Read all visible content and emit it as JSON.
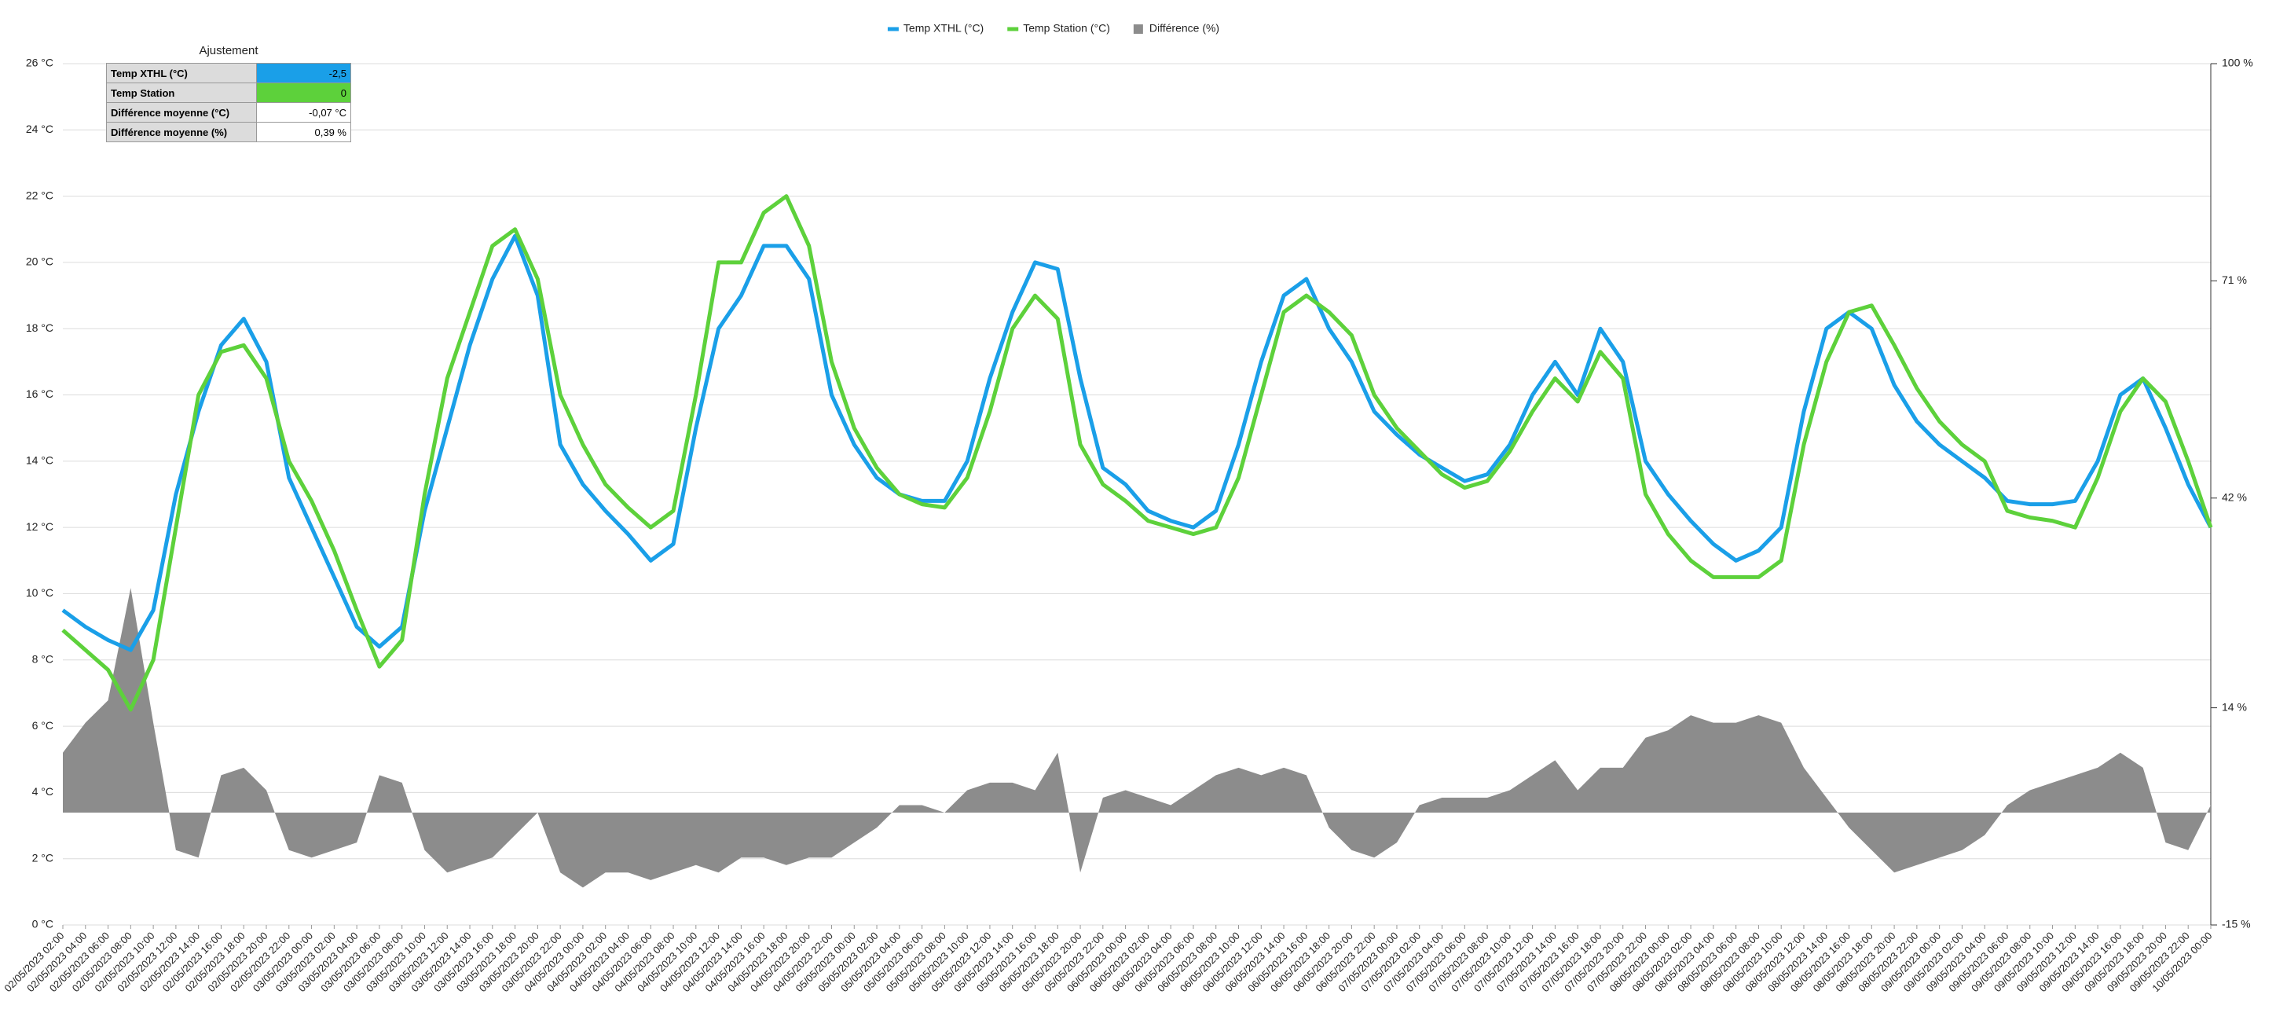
{
  "chart_data": {
    "type": "line",
    "legend": "top",
    "grid": true,
    "categories": [
      "02/05/2023 02:00",
      "02/05/2023 04:00",
      "02/05/2023 06:00",
      "02/05/2023 08:00",
      "02/05/2023 10:00",
      "02/05/2023 12:00",
      "02/05/2023 14:00",
      "02/05/2023 16:00",
      "02/05/2023 18:00",
      "02/05/2023 20:00",
      "02/05/2023 22:00",
      "03/05/2023 00:00",
      "03/05/2023 02:00",
      "03/05/2023 04:00",
      "03/05/2023 06:00",
      "03/05/2023 08:00",
      "03/05/2023 10:00",
      "03/05/2023 12:00",
      "03/05/2023 14:00",
      "03/05/2023 16:00",
      "03/05/2023 18:00",
      "03/05/2023 20:00",
      "03/05/2023 22:00",
      "04/05/2023 00:00",
      "04/05/2023 02:00",
      "04/05/2023 04:00",
      "04/05/2023 06:00",
      "04/05/2023 08:00",
      "04/05/2023 10:00",
      "04/05/2023 12:00",
      "04/05/2023 14:00",
      "04/05/2023 16:00",
      "04/05/2023 18:00",
      "04/05/2023 20:00",
      "04/05/2023 22:00",
      "05/05/2023 00:00",
      "05/05/2023 02:00",
      "05/05/2023 04:00",
      "05/05/2023 06:00",
      "05/05/2023 08:00",
      "05/05/2023 10:00",
      "05/05/2023 12:00",
      "05/05/2023 14:00",
      "05/05/2023 16:00",
      "05/05/2023 18:00",
      "05/05/2023 20:00",
      "05/05/2023 22:00",
      "06/05/2023 00:00",
      "06/05/2023 02:00",
      "06/05/2023 04:00",
      "06/05/2023 06:00",
      "06/05/2023 08:00",
      "06/05/2023 10:00",
      "06/05/2023 12:00",
      "06/05/2023 14:00",
      "06/05/2023 16:00",
      "06/05/2023 18:00",
      "06/05/2023 20:00",
      "06/05/2023 22:00",
      "07/05/2023 00:00",
      "07/05/2023 02:00",
      "07/05/2023 04:00",
      "07/05/2023 06:00",
      "07/05/2023 08:00",
      "07/05/2023 10:00",
      "07/05/2023 12:00",
      "07/05/2023 14:00",
      "07/05/2023 16:00",
      "07/05/2023 18:00",
      "07/05/2023 20:00",
      "07/05/2023 22:00",
      "08/05/2023 00:00",
      "08/05/2023 02:00",
      "08/05/2023 04:00",
      "08/05/2023 06:00",
      "08/05/2023 08:00",
      "08/05/2023 10:00",
      "08/05/2023 12:00",
      "08/05/2023 14:00",
      "08/05/2023 16:00",
      "08/05/2023 18:00",
      "08/05/2023 20:00",
      "08/05/2023 22:00",
      "09/05/2023 00:00",
      "09/05/2023 02:00",
      "09/05/2023 04:00",
      "09/05/2023 06:00",
      "09/05/2023 08:00",
      "09/05/2023 10:00",
      "09/05/2023 12:00",
      "09/05/2023 14:00",
      "09/05/2023 16:00",
      "09/05/2023 18:00",
      "09/05/2023 20:00",
      "09/05/2023 22:00",
      "10/05/2023 00:00"
    ],
    "series": [
      {
        "name": "Temp XTHL (°C)",
        "type": "line",
        "color": "#1a9fe8",
        "values": [
          9.5,
          9.0,
          8.6,
          8.3,
          9.5,
          13.0,
          15.5,
          17.5,
          18.3,
          17.0,
          13.5,
          12.0,
          10.5,
          9.0,
          8.4,
          9.0,
          12.5,
          15.0,
          17.5,
          19.5,
          20.8,
          19.0,
          14.5,
          13.3,
          12.5,
          11.8,
          11.0,
          11.5,
          15.0,
          18.0,
          19.0,
          20.5,
          20.5,
          19.5,
          16.0,
          14.5,
          13.5,
          13.0,
          12.8,
          12.8,
          14.0,
          16.5,
          18.5,
          20.0,
          19.8,
          16.5,
          13.8,
          13.3,
          12.5,
          12.2,
          12.0,
          12.5,
          14.5,
          17.0,
          19.0,
          19.5,
          18.0,
          17.0,
          15.5,
          14.8,
          14.2,
          13.8,
          13.4,
          13.6,
          14.5,
          16.0,
          17.0,
          16.0,
          18.0,
          17.0,
          14.0,
          13.0,
          12.2,
          11.5,
          11.0,
          11.3,
          12.0,
          15.5,
          18.0,
          18.5,
          18.0,
          16.3,
          15.2,
          14.5,
          14.0,
          13.5,
          12.8,
          12.7,
          12.7,
          12.8,
          14.0,
          16.0,
          16.5,
          15.0,
          13.3,
          12.0
        ]
      },
      {
        "name": "Temp Station (°C)",
        "type": "line",
        "color": "#5dd13b",
        "values": [
          8.9,
          8.3,
          7.7,
          6.5,
          8.0,
          12.0,
          16.0,
          17.3,
          17.5,
          16.5,
          14.0,
          12.8,
          11.3,
          9.5,
          7.8,
          8.6,
          13.0,
          16.5,
          18.5,
          20.5,
          21.0,
          19.5,
          16.0,
          14.5,
          13.3,
          12.6,
          12.0,
          12.5,
          16.0,
          20.0,
          20.0,
          21.5,
          22.0,
          20.5,
          17.0,
          15.0,
          13.8,
          13.0,
          12.7,
          12.6,
          13.5,
          15.5,
          18.0,
          19.0,
          18.3,
          14.5,
          13.3,
          12.8,
          12.2,
          12.0,
          11.8,
          12.0,
          13.5,
          16.0,
          18.5,
          19.0,
          18.5,
          17.8,
          16.0,
          15.0,
          14.3,
          13.6,
          13.2,
          13.4,
          14.3,
          15.5,
          16.5,
          15.8,
          17.3,
          16.5,
          13.0,
          11.8,
          11.0,
          10.5,
          10.5,
          10.5,
          11.0,
          14.5,
          17.0,
          18.5,
          18.7,
          17.5,
          16.2,
          15.2,
          14.5,
          14.0,
          12.5,
          12.3,
          12.2,
          12.0,
          13.5,
          15.5,
          16.5,
          15.8,
          14.0,
          12.0
        ]
      },
      {
        "name": "Différence (%)",
        "type": "area",
        "axis": "y2",
        "color": "#8c8c8c",
        "values": [
          8,
          12,
          15,
          30,
          12,
          -5,
          -6,
          5,
          6,
          3,
          -5,
          -6,
          -5,
          -4,
          5,
          4,
          -5,
          -8,
          -7,
          -6,
          -3,
          0,
          -8,
          -10,
          -8,
          -8,
          -9,
          -8,
          -7,
          -8,
          -6,
          -6,
          -7,
          -6,
          -6,
          -4,
          -2,
          1,
          1,
          0,
          3,
          4,
          4,
          3,
          8,
          -8,
          2,
          3,
          2,
          1,
          3,
          5,
          6,
          5,
          6,
          5,
          -2,
          -5,
          -6,
          -4,
          1,
          2,
          2,
          2,
          3,
          5,
          7,
          3,
          6,
          6,
          10,
          11,
          13,
          12,
          12,
          13,
          12,
          6,
          2,
          -2,
          -5,
          -8,
          -7,
          -6,
          -5,
          -3,
          1,
          3,
          4,
          5,
          6,
          8,
          6,
          -4,
          -5,
          1
        ]
      }
    ],
    "ylim": [
      0,
      26
    ],
    "yticks": [
      {
        "value": 0,
        "label": "0 °C"
      },
      {
        "value": 2,
        "label": "2 °C"
      },
      {
        "value": 4,
        "label": "4 °C"
      },
      {
        "value": 6,
        "label": "6 °C"
      },
      {
        "value": 8,
        "label": "8 °C"
      },
      {
        "value": 10,
        "label": "10 °C"
      },
      {
        "value": 12,
        "label": "12 °C"
      },
      {
        "value": 14,
        "label": "14 °C"
      },
      {
        "value": 16,
        "label": "16 °C"
      },
      {
        "value": 18,
        "label": "18 °C"
      },
      {
        "value": 20,
        "label": "20 °C"
      },
      {
        "value": 22,
        "label": "22 °C"
      },
      {
        "value": 24,
        "label": "24 °C"
      },
      {
        "value": 26,
        "label": "26 °C"
      }
    ],
    "y2lim": [
      -15,
      100
    ],
    "y2ticks": [
      {
        "value": -15,
        "label": "-15 %"
      },
      {
        "value": 14,
        "label": "14 %"
      },
      {
        "value": 42,
        "label": "42 %"
      },
      {
        "value": 71,
        "label": "71 %"
      },
      {
        "value": 100,
        "label": "100 %"
      }
    ]
  },
  "table": {
    "title": "Ajustement",
    "rows": [
      [
        "Temp XTHL (°C)",
        "-2,5"
      ],
      [
        "Temp Station",
        "0"
      ],
      [
        "Différence moyenne (°C)",
        "-0,07 °C"
      ],
      [
        "Différence moyenne (%)",
        "0,39 %"
      ]
    ]
  }
}
